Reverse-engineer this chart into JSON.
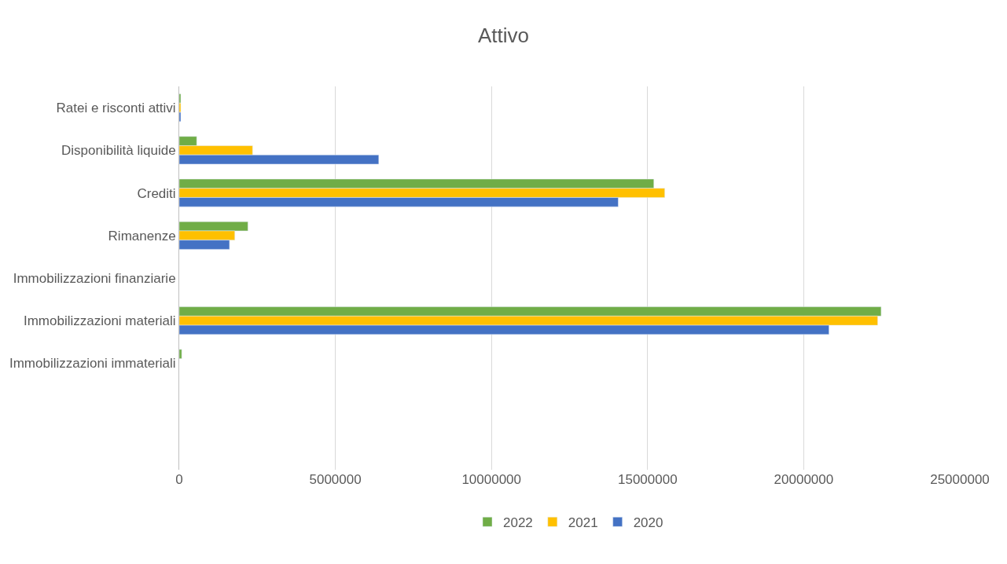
{
  "chart_data": {
    "type": "bar",
    "orientation": "horizontal",
    "title": "Attivo",
    "categories": [
      "Ratei e risconti attivi",
      "Disponibilità liquide",
      "Crediti",
      "Rimanenze",
      "Immobilizzazioni finanziarie",
      "Immobilizzazioni materiali",
      "Immobilizzazioni immateriali",
      null,
      null
    ],
    "series": [
      {
        "name": "2022",
        "color": "#70ad47",
        "values": [
          50000,
          560000,
          15200000,
          2200000,
          null,
          22480000,
          80000,
          null,
          null
        ]
      },
      {
        "name": "2021",
        "color": "#ffc000",
        "values": [
          50000,
          2350000,
          15550000,
          1780000,
          null,
          22370000,
          null,
          null,
          null
        ]
      },
      {
        "name": "2020",
        "color": "#4472c4",
        "values": [
          50000,
          6390000,
          14060000,
          1610000,
          null,
          20810000,
          null,
          null,
          null
        ]
      }
    ],
    "xlim": [
      0,
      25000000
    ],
    "xticks": [
      0,
      5000000,
      10000000,
      15000000,
      20000000,
      25000000
    ],
    "grid": "x",
    "legend": "bottom"
  }
}
